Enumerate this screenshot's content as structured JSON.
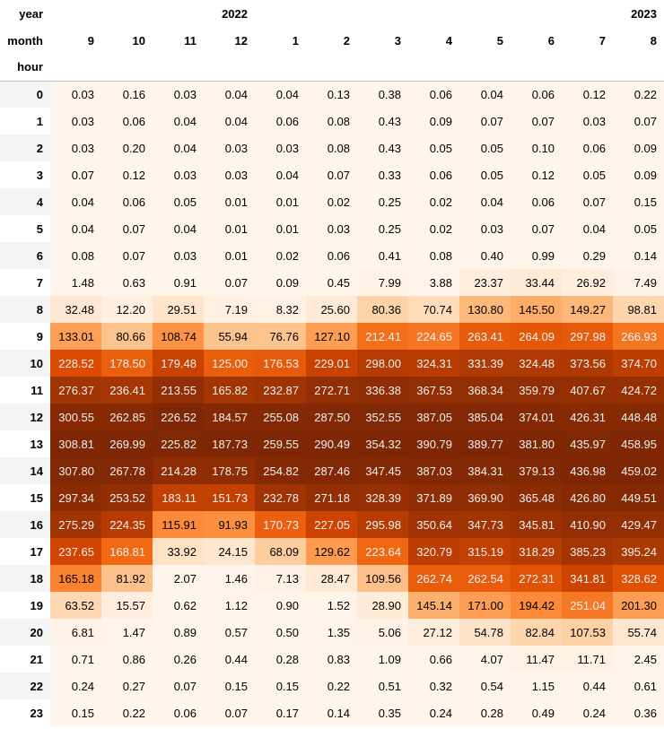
{
  "chart_data": {
    "type": "heatmap",
    "colormap": "Oranges",
    "index_names": {
      "year": "year",
      "month": "month",
      "hour": "hour"
    },
    "year_labels": [
      {
        "label": "2022",
        "span": 4
      },
      {
        "label": "2023",
        "span": 8
      }
    ],
    "months": [
      "9",
      "10",
      "11",
      "12",
      "1",
      "2",
      "3",
      "4",
      "5",
      "6",
      "7",
      "8"
    ],
    "hours": [
      "0",
      "1",
      "2",
      "3",
      "4",
      "5",
      "6",
      "7",
      "8",
      "9",
      "10",
      "11",
      "12",
      "13",
      "14",
      "15",
      "16",
      "17",
      "18",
      "19",
      "20",
      "21",
      "22",
      "23"
    ],
    "values": [
      [
        "0.03",
        "0.16",
        "0.03",
        "0.04",
        "0.04",
        "0.13",
        "0.38",
        "0.06",
        "0.04",
        "0.06",
        "0.12",
        "0.22"
      ],
      [
        "0.03",
        "0.06",
        "0.04",
        "0.04",
        "0.06",
        "0.08",
        "0.43",
        "0.09",
        "0.07",
        "0.07",
        "0.03",
        "0.07"
      ],
      [
        "0.03",
        "0.20",
        "0.04",
        "0.03",
        "0.03",
        "0.08",
        "0.43",
        "0.05",
        "0.05",
        "0.10",
        "0.06",
        "0.09"
      ],
      [
        "0.07",
        "0.12",
        "0.03",
        "0.03",
        "0.04",
        "0.07",
        "0.33",
        "0.06",
        "0.05",
        "0.12",
        "0.05",
        "0.09"
      ],
      [
        "0.04",
        "0.06",
        "0.05",
        "0.01",
        "0.01",
        "0.02",
        "0.25",
        "0.02",
        "0.04",
        "0.06",
        "0.07",
        "0.15"
      ],
      [
        "0.04",
        "0.07",
        "0.04",
        "0.01",
        "0.01",
        "0.03",
        "0.25",
        "0.02",
        "0.03",
        "0.07",
        "0.04",
        "0.05"
      ],
      [
        "0.08",
        "0.07",
        "0.03",
        "0.01",
        "0.02",
        "0.06",
        "0.41",
        "0.08",
        "0.40",
        "0.99",
        "0.29",
        "0.14"
      ],
      [
        "1.48",
        "0.63",
        "0.91",
        "0.07",
        "0.09",
        "0.45",
        "7.99",
        "3.88",
        "23.37",
        "33.44",
        "26.92",
        "7.49"
      ],
      [
        "32.48",
        "12.20",
        "29.51",
        "7.19",
        "8.32",
        "25.60",
        "80.36",
        "70.74",
        "130.80",
        "145.50",
        "149.27",
        "98.81"
      ],
      [
        "133.01",
        "80.66",
        "108.74",
        "55.94",
        "76.76",
        "127.10",
        "212.41",
        "224.65",
        "263.41",
        "264.09",
        "297.98",
        "266.93"
      ],
      [
        "228.52",
        "178.50",
        "179.48",
        "125.00",
        "176.53",
        "229.01",
        "298.00",
        "324.31",
        "331.39",
        "324.48",
        "373.56",
        "374.70"
      ],
      [
        "276.37",
        "236.41",
        "213.55",
        "165.82",
        "232.87",
        "272.71",
        "336.38",
        "367.53",
        "368.34",
        "359.79",
        "407.67",
        "424.72"
      ],
      [
        "300.55",
        "262.85",
        "226.52",
        "184.57",
        "255.08",
        "287.50",
        "352.55",
        "387.05",
        "385.04",
        "374.01",
        "426.31",
        "448.48"
      ],
      [
        "308.81",
        "269.99",
        "225.82",
        "187.73",
        "259.55",
        "290.49",
        "354.32",
        "390.79",
        "389.77",
        "381.80",
        "435.97",
        "458.95"
      ],
      [
        "307.80",
        "267.78",
        "214.28",
        "178.75",
        "254.82",
        "287.46",
        "347.45",
        "387.03",
        "384.31",
        "379.13",
        "436.98",
        "459.02"
      ],
      [
        "297.34",
        "253.52",
        "183.11",
        "151.73",
        "232.78",
        "271.18",
        "328.39",
        "371.89",
        "369.90",
        "365.48",
        "426.80",
        "449.51"
      ],
      [
        "275.29",
        "224.35",
        "115.91",
        "91.93",
        "170.73",
        "227.05",
        "295.98",
        "350.64",
        "347.73",
        "345.81",
        "410.90",
        "429.47"
      ],
      [
        "237.65",
        "168.81",
        "33.92",
        "24.15",
        "68.09",
        "129.62",
        "223.64",
        "320.79",
        "315.19",
        "318.29",
        "385.23",
        "395.24"
      ],
      [
        "165.18",
        "81.92",
        "2.07",
        "1.46",
        "7.13",
        "28.47",
        "109.56",
        "262.74",
        "262.54",
        "272.31",
        "341.81",
        "328.62"
      ],
      [
        "63.52",
        "15.57",
        "0.62",
        "1.12",
        "0.90",
        "1.52",
        "28.90",
        "145.14",
        "171.00",
        "194.42",
        "251.04",
        "201.30"
      ],
      [
        "6.81",
        "1.47",
        "0.89",
        "0.57",
        "0.50",
        "1.35",
        "5.06",
        "27.12",
        "54.78",
        "82.84",
        "107.53",
        "55.74"
      ],
      [
        "0.71",
        "0.86",
        "0.26",
        "0.44",
        "0.28",
        "0.83",
        "1.09",
        "0.66",
        "4.07",
        "11.47",
        "11.71",
        "2.45"
      ],
      [
        "0.24",
        "0.27",
        "0.07",
        "0.15",
        "0.15",
        "0.22",
        "0.51",
        "0.32",
        "0.54",
        "1.15",
        "0.44",
        "0.61"
      ],
      [
        "0.15",
        "0.22",
        "0.06",
        "0.07",
        "0.17",
        "0.14",
        "0.35",
        "0.24",
        "0.28",
        "0.49",
        "0.24",
        "0.36"
      ]
    ]
  }
}
